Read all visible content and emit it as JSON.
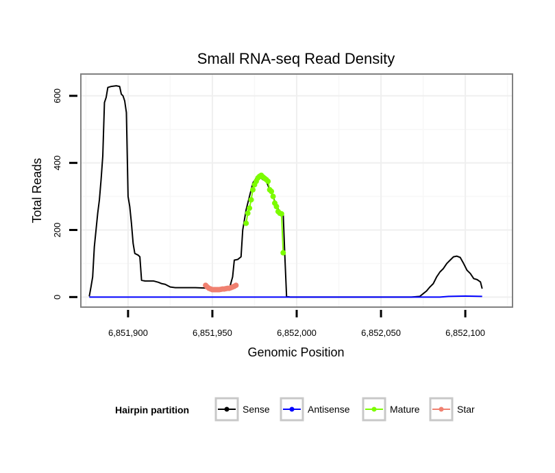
{
  "chart_data": {
    "type": "line",
    "title": "Small RNA-seq Read Density",
    "xlabel": "Genomic Position",
    "ylabel": "Total Reads",
    "xlim": [
      6851872,
      6852128
    ],
    "ylim": [
      -30,
      665
    ],
    "x_ticks": [
      6851900,
      6851950,
      6852000,
      6852050,
      6852100
    ],
    "x_tick_labels": [
      "6,851,900",
      "6,851,950",
      "6,852,000",
      "6,852,050",
      "6,852,100"
    ],
    "y_ticks": [
      0,
      200,
      400,
      600
    ],
    "y_tick_labels": [
      "0",
      "200",
      "400",
      "600"
    ],
    "grid": true,
    "legend": {
      "title": "Hairpin partition",
      "placement": "bottom",
      "entries": [
        "Sense",
        "Antisense",
        "Mature",
        "Star"
      ]
    },
    "series": [
      {
        "name": "Sense",
        "color": "#000000",
        "markers": false,
        "points": [
          [
            6851877,
            2
          ],
          [
            6851878,
            30
          ],
          [
            6851879,
            60
          ],
          [
            6851880,
            150
          ],
          [
            6851881,
            200
          ],
          [
            6851882,
            250
          ],
          [
            6851883,
            290
          ],
          [
            6851884,
            350
          ],
          [
            6851885,
            420
          ],
          [
            6851886,
            580
          ],
          [
            6851887,
            595
          ],
          [
            6851888,
            625
          ],
          [
            6851890,
            628
          ],
          [
            6851893,
            630
          ],
          [
            6851895,
            628
          ],
          [
            6851896,
            605
          ],
          [
            6851897,
            600
          ],
          [
            6851898,
            585
          ],
          [
            6851899,
            550
          ],
          [
            6851900,
            300
          ],
          [
            6851901,
            270
          ],
          [
            6851902,
            220
          ],
          [
            6851903,
            160
          ],
          [
            6851904,
            130
          ],
          [
            6851906,
            125
          ],
          [
            6851907,
            120
          ],
          [
            6851908,
            50
          ],
          [
            6851910,
            48
          ],
          [
            6851915,
            48
          ],
          [
            6851918,
            44
          ],
          [
            6851920,
            40
          ],
          [
            6851922,
            38
          ],
          [
            6851925,
            30
          ],
          [
            6851928,
            28
          ],
          [
            6851930,
            28
          ],
          [
            6851940,
            28
          ],
          [
            6851950,
            26
          ],
          [
            6851955,
            24
          ],
          [
            6851960,
            24
          ],
          [
            6851962,
            60
          ],
          [
            6851963,
            110
          ],
          [
            6851965,
            112
          ],
          [
            6851967,
            120
          ],
          [
            6851968,
            200
          ],
          [
            6851970,
            260
          ],
          [
            6851972,
            300
          ],
          [
            6851974,
            340
          ],
          [
            6851976,
            355
          ],
          [
            6851978,
            358
          ],
          [
            6851980,
            350
          ],
          [
            6851982,
            345
          ],
          [
            6851984,
            320
          ],
          [
            6851986,
            300
          ],
          [
            6851988,
            270
          ],
          [
            6851990,
            255
          ],
          [
            6851992,
            250
          ],
          [
            6851993,
            120
          ],
          [
            6851994,
            2
          ],
          [
            6851996,
            0
          ],
          [
            6852030,
            0
          ],
          [
            6852068,
            0
          ],
          [
            6852073,
            2
          ],
          [
            6852075,
            10
          ],
          [
            6852077,
            18
          ],
          [
            6852079,
            30
          ],
          [
            6852081,
            40
          ],
          [
            6852083,
            60
          ],
          [
            6852085,
            75
          ],
          [
            6852087,
            85
          ],
          [
            6852089,
            100
          ],
          [
            6852091,
            110
          ],
          [
            6852093,
            120
          ],
          [
            6852095,
            122
          ],
          [
            6852097,
            118
          ],
          [
            6852099,
            100
          ],
          [
            6852101,
            80
          ],
          [
            6852103,
            70
          ],
          [
            6852105,
            55
          ],
          [
            6852107,
            52
          ],
          [
            6852109,
            45
          ],
          [
            6852110,
            25
          ]
        ]
      },
      {
        "name": "Antisense",
        "color": "#0000ff",
        "markers": false,
        "points": [
          [
            6851877,
            0
          ],
          [
            6851950,
            0
          ],
          [
            6852000,
            0
          ],
          [
            6852050,
            0
          ],
          [
            6852085,
            0
          ],
          [
            6852090,
            2
          ],
          [
            6852100,
            3
          ],
          [
            6852110,
            2
          ]
        ]
      },
      {
        "name": "Mature",
        "color": "#7cfc00",
        "markers": true,
        "points": [
          [
            6851970,
            220
          ],
          [
            6851971,
            250
          ],
          [
            6851972,
            265
          ],
          [
            6851973,
            290
          ],
          [
            6851974,
            320
          ],
          [
            6851975,
            335
          ],
          [
            6851976,
            345
          ],
          [
            6851977,
            355
          ],
          [
            6851978,
            360
          ],
          [
            6851979,
            363
          ],
          [
            6851980,
            358
          ],
          [
            6851981,
            354
          ],
          [
            6851982,
            350
          ],
          [
            6851983,
            345
          ],
          [
            6851984,
            320
          ],
          [
            6851985,
            315
          ],
          [
            6851986,
            300
          ],
          [
            6851987,
            280
          ],
          [
            6851988,
            270
          ],
          [
            6851989,
            255
          ],
          [
            6851990,
            250
          ],
          [
            6851991,
            248
          ],
          [
            6851992,
            132
          ]
        ]
      },
      {
        "name": "Star",
        "color": "#f08070",
        "markers": true,
        "points": [
          [
            6851946,
            35
          ],
          [
            6851947,
            30
          ],
          [
            6851948,
            26
          ],
          [
            6851949,
            24
          ],
          [
            6851950,
            22
          ],
          [
            6851951,
            22
          ],
          [
            6851952,
            22
          ],
          [
            6851953,
            22
          ],
          [
            6851954,
            22
          ],
          [
            6851955,
            23
          ],
          [
            6851956,
            24
          ],
          [
            6851957,
            24
          ],
          [
            6851958,
            25
          ],
          [
            6851959,
            26
          ],
          [
            6851960,
            26
          ],
          [
            6851961,
            28
          ],
          [
            6851962,
            30
          ],
          [
            6851963,
            32
          ],
          [
            6851964,
            35
          ]
        ]
      }
    ]
  }
}
